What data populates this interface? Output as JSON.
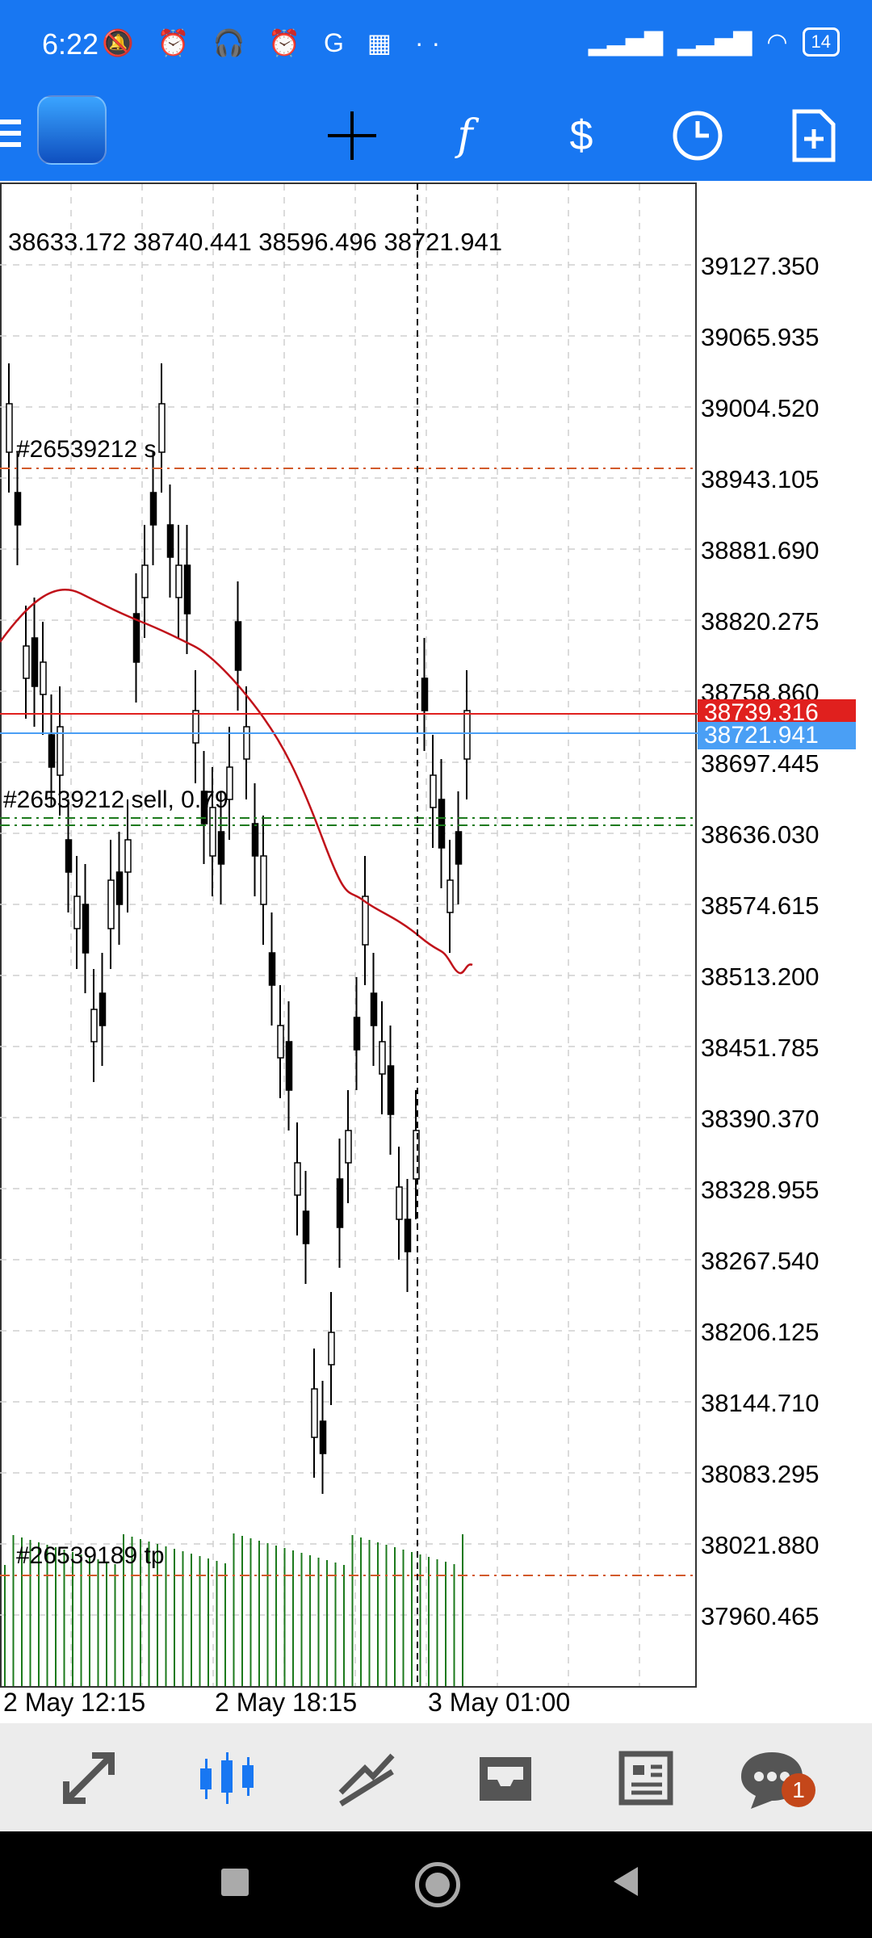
{
  "status_bar": {
    "time": "6:22",
    "left_icons": [
      "mute-icon",
      "alarm-icon",
      "headset-icon",
      "alarm-icon",
      "g-icon",
      "calendar-icon",
      "more-icon"
    ],
    "battery": "14"
  },
  "toolbar": {
    "icons": [
      "crosshair-icon",
      "function-icon",
      "currency-change-icon",
      "clock-icon",
      "new-order-icon"
    ]
  },
  "chart": {
    "ohlc": "38633.172 38740.441 38596.496 38721.941",
    "price_levels": [
      "39127.350",
      "39065.935",
      "39004.520",
      "38943.105",
      "38881.690",
      "38820.275",
      "38758.860",
      "38697.445",
      "38636.030",
      "38574.615",
      "38513.200",
      "38451.785",
      "38390.370",
      "38328.955",
      "38267.540",
      "38206.125",
      "38144.710",
      "38083.295",
      "38021.880",
      "37960.465"
    ],
    "ask_tag": "38739.316",
    "bid_tag": "38721.941",
    "ask_color": "#e0201e",
    "bid_color": "#4a9ff5",
    "order_labels": [
      "#26539212 s",
      "#26539212 sell, 0.79",
      "#26539189 tp"
    ],
    "time_labels": [
      "2 May 12:15",
      "2 May 18:15",
      "3 May 01:00"
    ]
  },
  "nav": {
    "items": [
      "trade-icon",
      "chart-icon",
      "trendline-icon",
      "inbox-icon",
      "news-icon",
      "chat-icon"
    ],
    "active_color": "#1877f2",
    "badge": "1"
  }
}
